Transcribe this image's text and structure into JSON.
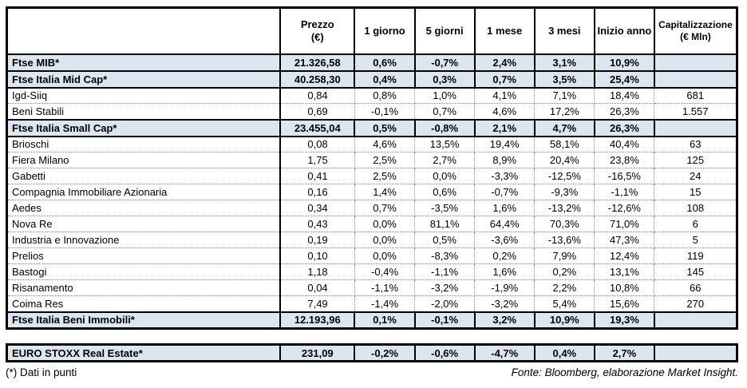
{
  "chart_data": {
    "type": "table",
    "columns": [
      "",
      "Prezzo\n(€)",
      "1 giorno",
      "5 giorni",
      "1 mese",
      "3 mesi",
      "Inizio anno",
      "Capitalizzazione\n(€ Mln)"
    ],
    "rows": [
      {
        "name": "Ftse MIB*",
        "type": "index",
        "values": [
          "21.326,58",
          "0,6%",
          "-0,7%",
          "2,4%",
          "3,1%",
          "10,9%",
          ""
        ]
      },
      {
        "name": "Ftse Italia Mid Cap*",
        "type": "index",
        "values": [
          "40.258,30",
          "0,4%",
          "0,3%",
          "0,7%",
          "3,5%",
          "25,4%",
          ""
        ]
      },
      {
        "name": "Igd-Siiq",
        "type": "stock",
        "values": [
          "0,84",
          "0,8%",
          "1,0%",
          "4,1%",
          "7,1%",
          "18,4%",
          "681"
        ]
      },
      {
        "name": "Beni Stabili",
        "type": "stock",
        "values": [
          "0,69",
          "-0,1%",
          "0,7%",
          "4,6%",
          "17,2%",
          "26,3%",
          "1.557"
        ]
      },
      {
        "name": "Ftse Italia Small Cap*",
        "type": "index",
        "values": [
          "23.455,04",
          "0,5%",
          "-0,8%",
          "2,1%",
          "4,7%",
          "26,3%",
          ""
        ]
      },
      {
        "name": "Brioschi",
        "type": "stock",
        "values": [
          "0,08",
          "4,6%",
          "13,5%",
          "19,4%",
          "58,1%",
          "40,4%",
          "63"
        ]
      },
      {
        "name": "Fiera Milano",
        "type": "stock",
        "values": [
          "1,75",
          "2,5%",
          "2,7%",
          "8,9%",
          "20,4%",
          "23,8%",
          "125"
        ]
      },
      {
        "name": "Gabetti",
        "type": "stock",
        "values": [
          "0,41",
          "2,5%",
          "0,0%",
          "-3,3%",
          "-12,5%",
          "-16,5%",
          "24"
        ]
      },
      {
        "name": "Compagnia Immobiliare Azionaria",
        "type": "stock",
        "values": [
          "0,16",
          "1,4%",
          "0,6%",
          "-0,7%",
          "-9,3%",
          "-1,1%",
          "15"
        ]
      },
      {
        "name": "Aedes",
        "type": "stock",
        "values": [
          "0,34",
          "0,7%",
          "-3,5%",
          "1,6%",
          "-13,2%",
          "-12,6%",
          "108"
        ]
      },
      {
        "name": "Nova Re",
        "type": "stock",
        "values": [
          "0,43",
          "0,0%",
          "81,1%",
          "64,4%",
          "70,3%",
          "71,0%",
          "6"
        ]
      },
      {
        "name": "Industria e Innovazione",
        "type": "stock",
        "values": [
          "0,19",
          "0,0%",
          "0,5%",
          "-3,6%",
          "-13,6%",
          "47,3%",
          "5"
        ]
      },
      {
        "name": "Prelios",
        "type": "stock",
        "values": [
          "0,10",
          "0,0%",
          "-8,3%",
          "0,2%",
          "7,9%",
          "12,4%",
          "119"
        ]
      },
      {
        "name": "Bastogi",
        "type": "stock",
        "values": [
          "1,18",
          "-0,4%",
          "-1,1%",
          "1,6%",
          "0,2%",
          "13,1%",
          "145"
        ]
      },
      {
        "name": "Risanamento",
        "type": "stock",
        "values": [
          "0,04",
          "-1,1%",
          "-3,2%",
          "-1,9%",
          "2,2%",
          "10,8%",
          "66"
        ]
      },
      {
        "name": "Coima Res",
        "type": "stock",
        "values": [
          "7,49",
          "-1,4%",
          "-2,0%",
          "-3,2%",
          "5,4%",
          "15,6%",
          "270"
        ]
      },
      {
        "name": "Ftse Italia Beni Immobili*",
        "type": "index",
        "values": [
          "12.193,96",
          "0,1%",
          "-0,1%",
          "3,2%",
          "10,9%",
          "19,3%",
          ""
        ]
      }
    ],
    "secondary_rows": [
      {
        "name": "EURO STOXX Real Estate*",
        "type": "index",
        "values": [
          "231,09",
          "-0,2%",
          "-0,6%",
          "-4,7%",
          "0,4%",
          "2,7%",
          ""
        ]
      }
    ]
  },
  "footer": {
    "note": "(*) Dati in punti",
    "source": "Fonte: Bloomberg, elaborazione Market Insight."
  },
  "colors": {
    "index_row_fill": "#dce6f1",
    "border": "#000000",
    "dotted_separator": "#8a8a8a"
  }
}
